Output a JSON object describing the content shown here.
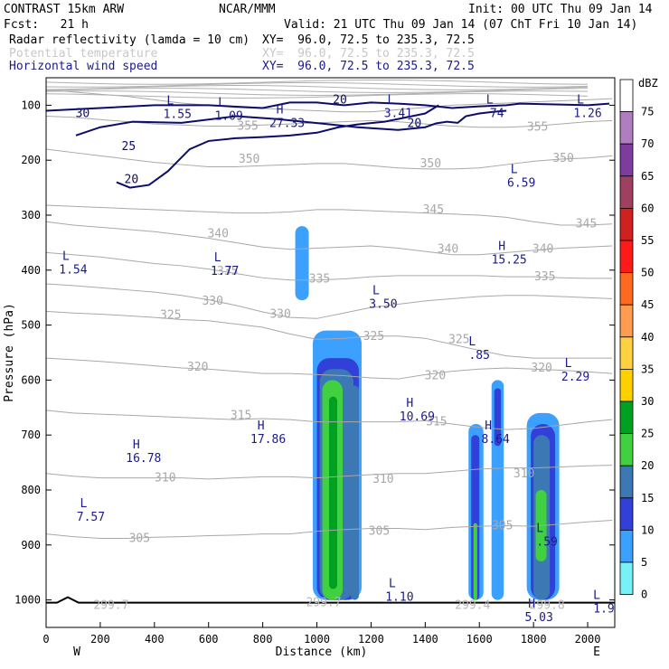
{
  "header": {
    "model": "CONTRAST 15km ARW",
    "org": "NCAR/MMM",
    "init": "Init: 00 UTC Thu 09 Jan 14",
    "fcst": "Fcst:   21 h",
    "valid": "Valid: 21 UTC Thu 09 Jan 14 (07 ChT Fri 10 Jan 14)",
    "fields": [
      {
        "name": "Radar reflectivity (lamda = 10 cm)",
        "xy": "XY=  96.0, 72.5 to 235.3, 72.5",
        "color": "#000000"
      },
      {
        "name": "Potential temperature",
        "xy": "XY=  96.0, 72.5 to 235.3, 72.5",
        "color": "#c8c8c8"
      },
      {
        "name": "Horizontal wind speed",
        "xy": "XY=  96.0, 72.5 to 235.3, 72.5",
        "color": "#1a1a8a"
      }
    ]
  },
  "chart_data": {
    "type": "cross-section",
    "xlabel": "Distance (km)",
    "ylabel": "Pressure (hPa)",
    "xlim": [
      0,
      2100
    ],
    "ylim": [
      1050,
      50
    ],
    "x_ticks": [
      0,
      200,
      400,
      600,
      800,
      1000,
      1200,
      1400,
      1600,
      1800,
      2000
    ],
    "y_ticks": [
      100,
      200,
      300,
      400,
      500,
      600,
      700,
      800,
      900,
      1000
    ],
    "direction_labels": {
      "left": "W",
      "right": "E"
    },
    "colorbar": {
      "unit": "dBZ",
      "levels": [
        75,
        70,
        65,
        60,
        55,
        50,
        45,
        40,
        35,
        30,
        25,
        20,
        15,
        10,
        5,
        0
      ],
      "colors": [
        "#ffffff",
        "#b07ec0",
        "#7e3c9e",
        "#a04060",
        "#d02020",
        "#ff1a1a",
        "#ff6a20",
        "#ff9c50",
        "#ffd040",
        "#ffd000",
        "#00a020",
        "#40d040",
        "#3c78b4",
        "#3040d8",
        "#3ca0ff",
        "#78f0f8"
      ]
    },
    "theta_contours": [
      {
        "value": 305,
        "p": [
          880,
          885,
          888,
          888,
          886,
          885,
          883,
          882,
          880,
          880,
          875,
          872,
          870,
          870,
          872,
          868,
          866,
          865,
          866,
          862,
          858,
          855
        ]
      },
      {
        "value": 310,
        "p": [
          770,
          775,
          778,
          778,
          778,
          778,
          780,
          778,
          776,
          776,
          778,
          775,
          772,
          770,
          770,
          766,
          762,
          760,
          760,
          758,
          756,
          755
        ]
      },
      {
        "value": 315,
        "p": [
          655,
          660,
          662,
          664,
          666,
          668,
          670,
          672,
          670,
          672,
          676,
          676,
          676,
          676,
          674,
          680,
          686,
          690,
          688,
          682,
          676,
          672
        ]
      },
      {
        "value": 320,
        "p": [
          560,
          563,
          566,
          570,
          574,
          578,
          580,
          584,
          588,
          588,
          590,
          592,
          596,
          598,
          590,
          584,
          580,
          578,
          580,
          582,
          585,
          588
        ]
      },
      {
        "value": 325,
        "p": [
          475,
          478,
          480,
          483,
          486,
          490,
          492,
          498,
          504,
          516,
          526,
          524,
          520,
          520,
          524,
          535,
          546,
          556,
          560,
          560,
          560,
          560
        ]
      },
      {
        "value": 330,
        "p": [
          425,
          428,
          432,
          436,
          440,
          446,
          454,
          464,
          476,
          486,
          488,
          478,
          468,
          462,
          456,
          452,
          448,
          446,
          446,
          448,
          450,
          452
        ]
      },
      {
        "value": 335,
        "p": [
          368,
          372,
          376,
          382,
          388,
          392,
          398,
          406,
          414,
          418,
          418,
          416,
          412,
          410,
          410,
          410,
          410,
          412,
          412,
          414,
          415,
          415
        ]
      },
      {
        "value": 340,
        "p": [
          312,
          318,
          322,
          326,
          330,
          336,
          342,
          350,
          358,
          362,
          360,
          358,
          356,
          360,
          366,
          372,
          372,
          368,
          364,
          360,
          358,
          356
        ]
      },
      {
        "value": 345,
        "p": [
          282,
          284,
          286,
          288,
          290,
          292,
          294,
          296,
          296,
          294,
          290,
          290,
          292,
          294,
          296,
          298,
          300,
          304,
          312,
          318,
          318,
          316
        ]
      },
      {
        "value": 350,
        "p": [
          180,
          186,
          192,
          198,
          204,
          208,
          212,
          212,
          210,
          208,
          206,
          206,
          210,
          214,
          216,
          216,
          214,
          208,
          202,
          198,
          196,
          192
        ]
      },
      {
        "value": 355,
        "p": [
          120,
          122,
          126,
          130,
          134,
          136,
          138,
          138,
          136,
          134,
          132,
          130,
          128,
          130,
          134,
          138,
          140,
          140,
          138,
          134,
          130,
          128
        ]
      },
      {
        "value": 360,
        "p": [
          72,
          76,
          80,
          84,
          90,
          96,
          100,
          104,
          106,
          108,
          110,
          112,
          112,
          108,
          104,
          100,
          98,
          96,
          94,
          92,
          90,
          88
        ]
      }
    ],
    "theta_labels": [
      {
        "text": "305",
        "x": 1230,
        "p": 875
      },
      {
        "text": "305",
        "x": 345,
        "p": 888
      },
      {
        "text": "305",
        "x": 1685,
        "p": 865
      },
      {
        "text": "310",
        "x": 440,
        "p": 778
      },
      {
        "text": "310",
        "x": 1245,
        "p": 780
      },
      {
        "text": "310",
        "x": 1765,
        "p": 770
      },
      {
        "text": "315",
        "x": 720,
        "p": 664
      },
      {
        "text": "315",
        "x": 1442,
        "p": 676
      },
      {
        "text": "320",
        "x": 560,
        "p": 576
      },
      {
        "text": "320",
        "x": 1437,
        "p": 592
      },
      {
        "text": "320",
        "x": 1830,
        "p": 578
      },
      {
        "text": "325",
        "x": 1525,
        "p": 526
      },
      {
        "text": "325",
        "x": 460,
        "p": 482
      },
      {
        "text": "325",
        "x": 1210,
        "p": 520
      },
      {
        "text": "330",
        "x": 615,
        "p": 456
      },
      {
        "text": "330",
        "x": 865,
        "p": 480
      },
      {
        "text": "335",
        "x": 670,
        "p": 402
      },
      {
        "text": "335",
        "x": 1010,
        "p": 416
      },
      {
        "text": "335",
        "x": 1842,
        "p": 412
      },
      {
        "text": "340",
        "x": 635,
        "p": 334
      },
      {
        "text": "340",
        "x": 1484,
        "p": 362
      },
      {
        "text": "340",
        "x": 1835,
        "p": 362
      },
      {
        "text": "345",
        "x": 1430,
        "p": 290
      },
      {
        "text": "345",
        "x": 1995,
        "p": 316
      },
      {
        "text": "350",
        "x": 750,
        "p": 198
      },
      {
        "text": "350",
        "x": 1420,
        "p": 206
      },
      {
        "text": "350",
        "x": 1910,
        "p": 196
      },
      {
        "text": "355",
        "x": 745,
        "p": 138
      },
      {
        "text": "355",
        "x": 1815,
        "p": 140
      }
    ],
    "theta_surface_labels": [
      {
        "text": "299.7",
        "x": 240,
        "p": 1010
      },
      {
        "text": "299.7",
        "x": 1025,
        "p": 1005
      },
      {
        "text": "299.4",
        "x": 1575,
        "p": 1010
      },
      {
        "text": "299.8",
        "x": 1850,
        "p": 1010
      }
    ],
    "wind_contours": [
      {
        "value": 20,
        "points": [
          [
            0,
            110
          ],
          [
            200,
            105
          ],
          [
            400,
            100
          ],
          [
            600,
            100
          ],
          [
            800,
            105
          ],
          [
            900,
            95
          ],
          [
            1000,
            95
          ],
          [
            1100,
            100
          ],
          [
            1200,
            95
          ],
          [
            1300,
            97
          ],
          [
            1400,
            100
          ],
          [
            1500,
            105
          ],
          [
            1600,
            102
          ],
          [
            1700,
            100
          ],
          [
            1750,
            97
          ],
          [
            2000,
            100
          ],
          [
            2080,
            97
          ]
        ]
      },
      {
        "value": 25,
        "points": [
          [
            110,
            155
          ],
          [
            200,
            140
          ],
          [
            320,
            130
          ],
          [
            500,
            132
          ],
          [
            700,
            120
          ],
          [
            850,
            125
          ],
          [
            950,
            130
          ],
          [
            1050,
            135
          ],
          [
            1150,
            140
          ],
          [
            1300,
            145
          ],
          [
            1400,
            140
          ],
          [
            1440,
            133
          ],
          [
            1480,
            130
          ],
          [
            1520,
            132
          ],
          [
            1550,
            120
          ],
          [
            1600,
            115
          ],
          [
            1650,
            112
          ],
          [
            1700,
            110
          ]
        ]
      },
      {
        "value": 20,
        "points": [
          [
            260,
            240
          ],
          [
            310,
            250
          ],
          [
            380,
            245
          ],
          [
            450,
            220
          ],
          [
            490,
            200
          ],
          [
            530,
            180
          ],
          [
            600,
            165
          ],
          [
            700,
            160
          ],
          [
            800,
            158
          ],
          [
            900,
            155
          ],
          [
            1000,
            150
          ],
          [
            1080,
            140
          ],
          [
            1150,
            135
          ],
          [
            1250,
            130
          ],
          [
            1300,
            125
          ],
          [
            1400,
            115
          ],
          [
            1450,
            100
          ]
        ]
      }
    ],
    "wind_labels": [
      {
        "text": "30",
        "x": 135,
        "p": 115
      },
      {
        "text": "25",
        "x": 305,
        "p": 175
      },
      {
        "text": "20",
        "x": 315,
        "p": 235
      },
      {
        "text": "20",
        "x": 1085,
        "p": 90
      },
      {
        "text": "20",
        "x": 1360,
        "p": 133
      }
    ],
    "extrema": [
      {
        "type": "L",
        "value": "1.55",
        "x": 485,
        "p": 92
      },
      {
        "type": "L",
        "value": "1.09",
        "x": 675,
        "p": 95
      },
      {
        "type": "H",
        "value": "27.33",
        "x": 890,
        "p": 108
      },
      {
        "type": "L",
        "value": "3.41",
        "x": 1300,
        "p": 90
      },
      {
        "type": "L",
        "value": "74",
        "x": 1665,
        "p": 90
      },
      {
        "type": "L",
        "value": "1.26",
        "x": 2000,
        "p": 90
      },
      {
        "type": "L",
        "value": "6.59",
        "x": 1755,
        "p": 217
      },
      {
        "type": "H",
        "value": "15.25",
        "x": 1710,
        "p": 357
      },
      {
        "type": "L",
        "value": "1.54",
        "x": 100,
        "p": 375
      },
      {
        "type": "L",
        "value": "1.77",
        "x": 660,
        "p": 377
      },
      {
        "type": "L",
        "value": "3.50",
        "x": 1245,
        "p": 437
      },
      {
        "type": "L",
        "value": ".85",
        "x": 1600,
        "p": 530
      },
      {
        "type": "L",
        "value": "2.29",
        "x": 1955,
        "p": 570
      },
      {
        "type": "H",
        "value": "10.69",
        "x": 1370,
        "p": 642
      },
      {
        "type": "H",
        "value": "17.86",
        "x": 820,
        "p": 683
      },
      {
        "type": "H",
        "value": "8.64",
        "x": 1660,
        "p": 683
      },
      {
        "type": "H",
        "value": "16.78",
        "x": 360,
        "p": 718
      },
      {
        "type": "L",
        "value": "7.57",
        "x": 165,
        "p": 825
      },
      {
        "type": "L",
        "value": ".59",
        "x": 1850,
        "p": 870
      },
      {
        "type": "L",
        "value": "1.10",
        "x": 1305,
        "p": 970
      },
      {
        "type": "H",
        "value": "5.03",
        "x": 1820,
        "p": 1007
      },
      {
        "type": "L",
        "value": "1.9",
        "x": 2060,
        "p": 992
      }
    ],
    "reflectivity_cells": [
      {
        "x0": 920,
        "x1": 970,
        "p_top": 320,
        "p_bot": 455,
        "dbz": 5
      },
      {
        "x0": 985,
        "x1": 1165,
        "p_top": 510,
        "p_bot": 1000,
        "dbz": 5
      },
      {
        "x0": 1000,
        "x1": 1155,
        "p_top": 560,
        "p_bot": 1000,
        "dbz": 10
      },
      {
        "x0": 1010,
        "x1": 1135,
        "p_top": 580,
        "p_bot": 1000,
        "dbz": 15
      },
      {
        "x0": 1020,
        "x1": 1095,
        "p_top": 600,
        "p_bot": 1000,
        "dbz": 20
      },
      {
        "x0": 1045,
        "x1": 1075,
        "p_top": 630,
        "p_bot": 980,
        "dbz": 25
      },
      {
        "x0": 1125,
        "x1": 1155,
        "p_top": 610,
        "p_bot": 1000,
        "dbz": 15
      },
      {
        "x0": 1560,
        "x1": 1615,
        "p_top": 680,
        "p_bot": 1000,
        "dbz": 5
      },
      {
        "x0": 1570,
        "x1": 1600,
        "p_top": 700,
        "p_bot": 1000,
        "dbz": 10
      },
      {
        "x0": 1578,
        "x1": 1592,
        "p_top": 860,
        "p_bot": 1000,
        "dbz": 20
      },
      {
        "x0": 1645,
        "x1": 1690,
        "p_top": 600,
        "p_bot": 1000,
        "dbz": 5
      },
      {
        "x0": 1655,
        "x1": 1680,
        "p_top": 615,
        "p_bot": 720,
        "dbz": 10
      },
      {
        "x0": 1775,
        "x1": 1895,
        "p_top": 660,
        "p_bot": 1000,
        "dbz": 5
      },
      {
        "x0": 1790,
        "x1": 1880,
        "p_top": 680,
        "p_bot": 1000,
        "dbz": 10
      },
      {
        "x0": 1800,
        "x1": 1860,
        "p_top": 700,
        "p_bot": 1000,
        "dbz": 15
      },
      {
        "x0": 1808,
        "x1": 1848,
        "p_top": 800,
        "p_bot": 930,
        "dbz": 20
      }
    ],
    "grid": false
  }
}
